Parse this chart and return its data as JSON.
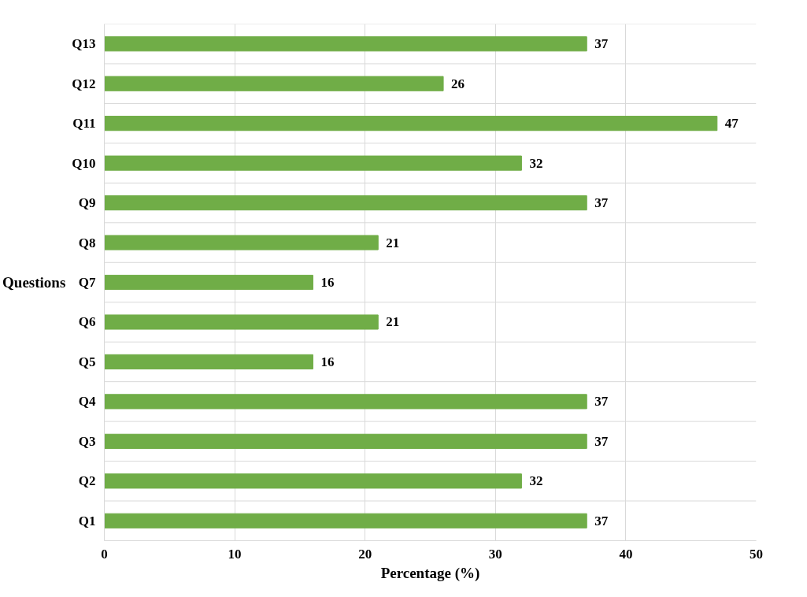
{
  "chart_data": {
    "type": "bar",
    "orientation": "horizontal",
    "xlabel": "Percentage (%)",
    "ylabel": "Questions",
    "categories": [
      "Q13",
      "Q12",
      "Q11",
      "Q10",
      "Q9",
      "Q8",
      "Q7",
      "Q6",
      "Q5",
      "Q4",
      "Q3",
      "Q2",
      "Q1"
    ],
    "values": [
      37,
      26,
      47,
      32,
      37,
      21,
      16,
      21,
      16,
      37,
      37,
      32,
      37
    ],
    "color": "#70ad47",
    "xlim": [
      0,
      50
    ],
    "xticks": [
      0,
      10,
      20,
      30,
      40,
      50
    ],
    "grid": true,
    "data_labels": true
  }
}
